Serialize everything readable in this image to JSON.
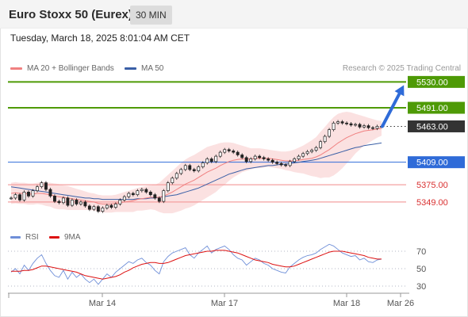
{
  "header": {
    "title": "Euro Stoxx 50 (Eurex)",
    "interval": "30 MIN"
  },
  "timestamp": "Tuesday, March 18, 2025 8:01:04 AM CET",
  "credit": "Research © 2025 Trading Central",
  "colors": {
    "resistance": "#4e9a06",
    "support": "#f4a0a0",
    "pivot": "#2f6bd8",
    "current": "#333333",
    "bollinger": "#f8c8c8",
    "ma20": "#f08080",
    "ma50": "#3a5fa6",
    "rsi": "#6f8fd8",
    "rsi_ma": "#dd1111",
    "arrow": "#2f6bd8"
  },
  "chart_data": [
    {
      "type": "line",
      "subtype": "price-with-levels",
      "x_ticks": [
        "Mar 14",
        "Mar 17",
        "Mar 18",
        "Mar 26"
      ],
      "ylim": [
        5325,
        5540
      ],
      "legend": [
        {
          "name": "MA 20 + Bollinger Bands",
          "color": "#f08080"
        },
        {
          "name": "MA 50",
          "color": "#3a5fa6"
        }
      ],
      "levels": [
        {
          "value": 5530.0,
          "label": "5530.00",
          "kind": "resistance"
        },
        {
          "value": 5491.0,
          "label": "5491.00",
          "kind": "resistance"
        },
        {
          "value": 5463.0,
          "label": "5463.00",
          "kind": "current"
        },
        {
          "value": 5409.0,
          "label": "5409.00",
          "kind": "pivot"
        },
        {
          "value": 5375.0,
          "label": "5375.00",
          "kind": "support"
        },
        {
          "value": 5349.0,
          "label": "5349.00",
          "kind": "support"
        }
      ],
      "price": [
        5355,
        5360,
        5352,
        5364,
        5358,
        5366,
        5372,
        5378,
        5368,
        5358,
        5350,
        5348,
        5355,
        5344,
        5352,
        5346,
        5349,
        5343,
        5338,
        5342,
        5335,
        5340,
        5344,
        5341,
        5346,
        5352,
        5357,
        5362,
        5360,
        5366,
        5368,
        5364,
        5360,
        5355,
        5350,
        5366,
        5378,
        5385,
        5392,
        5398,
        5404,
        5398,
        5396,
        5402,
        5408,
        5414,
        5410,
        5418,
        5424,
        5428,
        5426,
        5424,
        5420,
        5416,
        5410,
        5414,
        5418,
        5416,
        5414,
        5412,
        5409,
        5407,
        5405,
        5404,
        5410,
        5414,
        5418,
        5422,
        5425,
        5427,
        5431,
        5440,
        5448,
        5458,
        5468,
        5470,
        5468,
        5467,
        5465,
        5466,
        5462,
        5464,
        5461,
        5460,
        5463,
        5463
      ],
      "ma20": [
        5362,
        5363,
        5362,
        5362,
        5361,
        5361,
        5362,
        5362,
        5361,
        5360,
        5358,
        5357,
        5356,
        5355,
        5354,
        5353,
        5352,
        5351,
        5350,
        5349,
        5347,
        5346,
        5346,
        5346,
        5347,
        5348,
        5349,
        5350,
        5351,
        5353,
        5354,
        5355,
        5356,
        5356,
        5356,
        5358,
        5361,
        5364,
        5368,
        5372,
        5376,
        5379,
        5382,
        5386,
        5390,
        5394,
        5397,
        5400,
        5404,
        5407,
        5410,
        5412,
        5413,
        5414,
        5414,
        5414,
        5415,
        5415,
        5415,
        5415,
        5414,
        5413,
        5412,
        5411,
        5411,
        5411,
        5412,
        5413,
        5414,
        5415,
        5417,
        5420,
        5424,
        5428,
        5433,
        5438,
        5442,
        5446,
        5449,
        5452,
        5454,
        5456,
        5457,
        5458,
        5459,
        5460
      ],
      "bb_upper": [
        5378,
        5379,
        5378,
        5378,
        5377,
        5377,
        5378,
        5379,
        5379,
        5378,
        5377,
        5376,
        5374,
        5373,
        5371,
        5369,
        5367,
        5365,
        5363,
        5362,
        5360,
        5359,
        5359,
        5359,
        5360,
        5362,
        5364,
        5366,
        5368,
        5370,
        5372,
        5373,
        5374,
        5375,
        5378,
        5384,
        5390,
        5396,
        5402,
        5408,
        5413,
        5417,
        5420,
        5424,
        5428,
        5432,
        5434,
        5436,
        5438,
        5439,
        5439,
        5438,
        5436,
        5434,
        5432,
        5430,
        5430,
        5430,
        5429,
        5428,
        5427,
        5426,
        5425,
        5425,
        5426,
        5428,
        5431,
        5434,
        5438,
        5442,
        5447,
        5455,
        5462,
        5470,
        5477,
        5482,
        5484,
        5485,
        5484,
        5482,
        5480,
        5478,
        5476,
        5474,
        5472,
        5471
      ],
      "bb_lower": [
        5346,
        5347,
        5346,
        5346,
        5345,
        5345,
        5346,
        5345,
        5343,
        5342,
        5339,
        5338,
        5338,
        5337,
        5337,
        5337,
        5337,
        5337,
        5337,
        5336,
        5334,
        5333,
        5333,
        5333,
        5334,
        5334,
        5334,
        5334,
        5334,
        5336,
        5336,
        5337,
        5338,
        5337,
        5334,
        5332,
        5332,
        5332,
        5334,
        5336,
        5339,
        5341,
        5344,
        5348,
        5352,
        5356,
        5360,
        5364,
        5370,
        5375,
        5381,
        5386,
        5390,
        5394,
        5396,
        5398,
        5400,
        5400,
        5401,
        5402,
        5401,
        5400,
        5399,
        5397,
        5396,
        5394,
        5393,
        5392,
        5390,
        5388,
        5387,
        5385,
        5386,
        5386,
        5389,
        5394,
        5400,
        5407,
        5414,
        5422,
        5428,
        5434,
        5438,
        5442,
        5446,
        5449
      ],
      "ma50": [
        5372,
        5371,
        5370,
        5369,
        5368,
        5367,
        5366,
        5365,
        5364,
        5363,
        5362,
        5361,
        5360,
        5359,
        5358,
        5357,
        5356,
        5355,
        5355,
        5354,
        5354,
        5353,
        5353,
        5353,
        5353,
        5353,
        5353,
        5353,
        5353,
        5354,
        5354,
        5354,
        5355,
        5355,
        5356,
        5357,
        5358,
        5359,
        5360,
        5362,
        5364,
        5366,
        5368,
        5370,
        5373,
        5376,
        5379,
        5382,
        5385,
        5388,
        5391,
        5393,
        5395,
        5397,
        5399,
        5400,
        5401,
        5402,
        5403,
        5404,
        5404,
        5405,
        5406,
        5406,
        5407,
        5408,
        5409,
        5410,
        5411,
        5412,
        5413,
        5415,
        5417,
        5419,
        5421,
        5423,
        5425,
        5427,
        5429,
        5431,
        5432,
        5434,
        5435,
        5436,
        5437,
        5438
      ]
    },
    {
      "type": "line",
      "subtype": "rsi-panel",
      "ylim": [
        20,
        80
      ],
      "y_ticks": [
        "70",
        "50",
        "30"
      ],
      "legend": [
        {
          "name": "RSI",
          "color": "#6f8fd8"
        },
        {
          "name": "9MA",
          "color": "#dd1111"
        }
      ],
      "rsi": [
        46,
        50,
        44,
        54,
        48,
        56,
        62,
        66,
        56,
        48,
        42,
        40,
        48,
        38,
        46,
        40,
        44,
        38,
        34,
        38,
        32,
        38,
        44,
        40,
        46,
        50,
        54,
        58,
        56,
        60,
        62,
        57,
        54,
        48,
        44,
        58,
        64,
        68,
        70,
        72,
        74,
        66,
        62,
        68,
        72,
        76,
        68,
        72,
        74,
        76,
        72,
        66,
        62,
        60,
        54,
        58,
        62,
        60,
        56,
        54,
        50,
        48,
        46,
        45,
        52,
        56,
        60,
        63,
        65,
        66,
        68,
        72,
        75,
        78,
        76,
        72,
        68,
        66,
        64,
        65,
        60,
        62,
        58,
        57,
        60,
        61
      ],
      "ma9": [
        47,
        47,
        47,
        48,
        48,
        49,
        51,
        53,
        53,
        52,
        51,
        50,
        49,
        48,
        47,
        46,
        44,
        42,
        41,
        40,
        39,
        38,
        39,
        40,
        41,
        43,
        46,
        48,
        51,
        53,
        55,
        56,
        57,
        57,
        56,
        56,
        57,
        59,
        61,
        63,
        65,
        66,
        67,
        68,
        69,
        70,
        70,
        71,
        71,
        71,
        70,
        69,
        68,
        66,
        64,
        62,
        60,
        59,
        58,
        57,
        55,
        54,
        53,
        52,
        52,
        53,
        55,
        57,
        59,
        61,
        63,
        65,
        67,
        69,
        70,
        70,
        70,
        69,
        68,
        67,
        66,
        65,
        63,
        62,
        61,
        61
      ]
    }
  ]
}
